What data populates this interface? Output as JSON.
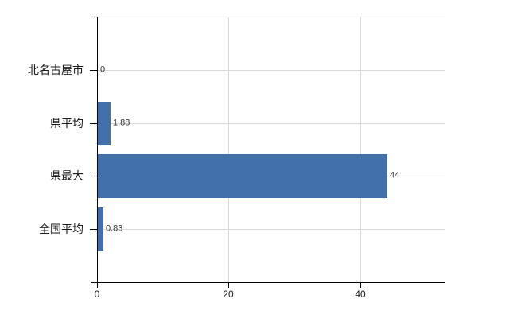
{
  "chart_data": {
    "type": "bar",
    "orientation": "horizontal",
    "title": "",
    "categories": [
      "北名古屋市",
      "県平均",
      "県最大",
      "全国平均"
    ],
    "values": [
      0,
      1.88,
      44,
      0.83
    ],
    "value_labels": [
      "0",
      "1.88",
      "44",
      "0.83"
    ],
    "xlim": [
      0,
      53
    ],
    "xticks": [
      0,
      20,
      40
    ],
    "xtick_labels": [
      "0",
      "20",
      "40"
    ],
    "grid": true,
    "legend": "none",
    "colors": {
      "bar": "#4170ab",
      "grid": "#d9d9d9",
      "axis": "#000000",
      "value_text": "#333333",
      "label_text": "#1a1a1a",
      "background": "#ffffff"
    }
  }
}
